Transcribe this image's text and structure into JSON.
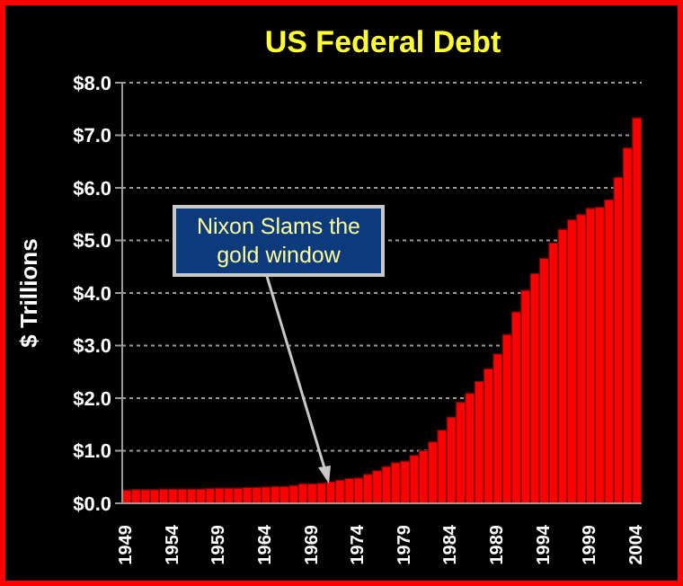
{
  "chart_data": {
    "type": "bar",
    "title": "US Federal Debt",
    "ylabel": "$ Trillions",
    "categories": [
      "1949",
      null,
      null,
      null,
      null,
      "1954",
      null,
      null,
      null,
      null,
      "1959",
      null,
      null,
      null,
      null,
      "1964",
      null,
      null,
      null,
      null,
      "1969",
      null,
      null,
      null,
      null,
      "1974",
      null,
      null,
      null,
      null,
      "1979",
      null,
      null,
      null,
      null,
      "1984",
      null,
      null,
      null,
      null,
      "1989",
      null,
      null,
      null,
      null,
      "1994",
      null,
      null,
      null,
      null,
      "1999",
      null,
      null,
      null,
      null,
      "2004"
    ],
    "values": [
      0.25,
      0.26,
      0.26,
      0.26,
      0.27,
      0.27,
      0.27,
      0.27,
      0.27,
      0.28,
      0.29,
      0.29,
      0.29,
      0.3,
      0.3,
      0.31,
      0.32,
      0.32,
      0.34,
      0.37,
      0.37,
      0.38,
      0.41,
      0.44,
      0.47,
      0.48,
      0.55,
      0.62,
      0.7,
      0.77,
      0.8,
      0.91,
      1.0,
      1.17,
      1.39,
      1.64,
      1.92,
      2.09,
      2.32,
      2.56,
      2.84,
      3.21,
      3.64,
      4.05,
      4.37,
      4.66,
      4.95,
      5.21,
      5.39,
      5.49,
      5.61,
      5.63,
      5.77,
      6.2,
      6.76,
      7.33
    ],
    "color": "#ff0000",
    "ylim": [
      0,
      8
    ],
    "yticks": [
      {
        "value": 0,
        "label": "$0.0"
      },
      {
        "value": 1,
        "label": "$1.0"
      },
      {
        "value": 2,
        "label": "$2.0"
      },
      {
        "value": 3,
        "label": "$3.0"
      },
      {
        "value": 4,
        "label": "$4.0"
      },
      {
        "value": 5,
        "label": "$5.0"
      },
      {
        "value": 6,
        "label": "$6.0"
      },
      {
        "value": 7,
        "label": "$7.0"
      },
      {
        "value": 8,
        "label": "$8.0"
      }
    ],
    "grid": "y",
    "annotations": [
      "Nixon Slams the gold window"
    ]
  }
}
